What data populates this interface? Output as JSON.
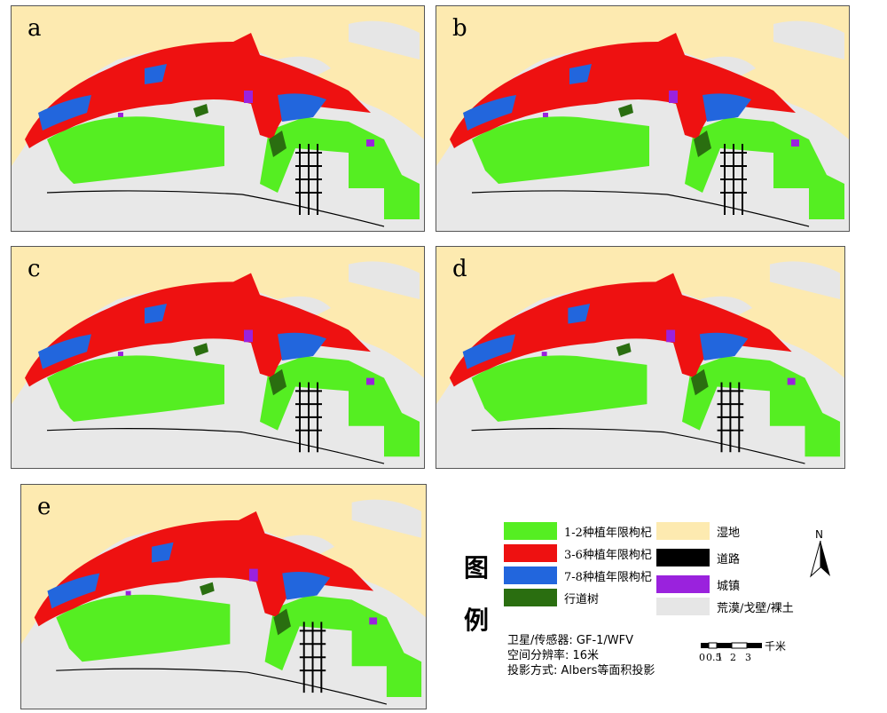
{
  "panels": [
    {
      "id": "a",
      "label": "a"
    },
    {
      "id": "b",
      "label": "b"
    },
    {
      "id": "c",
      "label": "c"
    },
    {
      "id": "d",
      "label": "d"
    },
    {
      "id": "e",
      "label": "e"
    }
  ],
  "legend": {
    "title_char_1": "图",
    "title_char_2": "例",
    "items": [
      {
        "label": "1-2种植年限枸杞",
        "color": "#55ee22"
      },
      {
        "label": "3-6种植年限枸杞",
        "color": "#ee1111"
      },
      {
        "label": "7-8种植年限枸杞",
        "color": "#2266dd"
      },
      {
        "label": "行道树",
        "color": "#2a6e10"
      },
      {
        "label": "湿地",
        "color": "#fdeab0"
      },
      {
        "label": "道路",
        "color": "#000000"
      },
      {
        "label": "城镇",
        "color": "#9a22dd"
      },
      {
        "label": "荒漠/戈壁/裸土",
        "color": "#e6e6e6"
      }
    ]
  },
  "metadata": {
    "satellite": "卫星/传感器: GF-1/WFV",
    "resolution": "空间分辨率: 16米",
    "projection": "投影方式: Albers等面积投影"
  },
  "north_arrow": {
    "label": "N",
    "icon": "north-arrow-icon"
  },
  "scale_bar": {
    "unit": "千米",
    "ticks": [
      "0",
      "0.5",
      "1",
      "2",
      "3"
    ]
  }
}
